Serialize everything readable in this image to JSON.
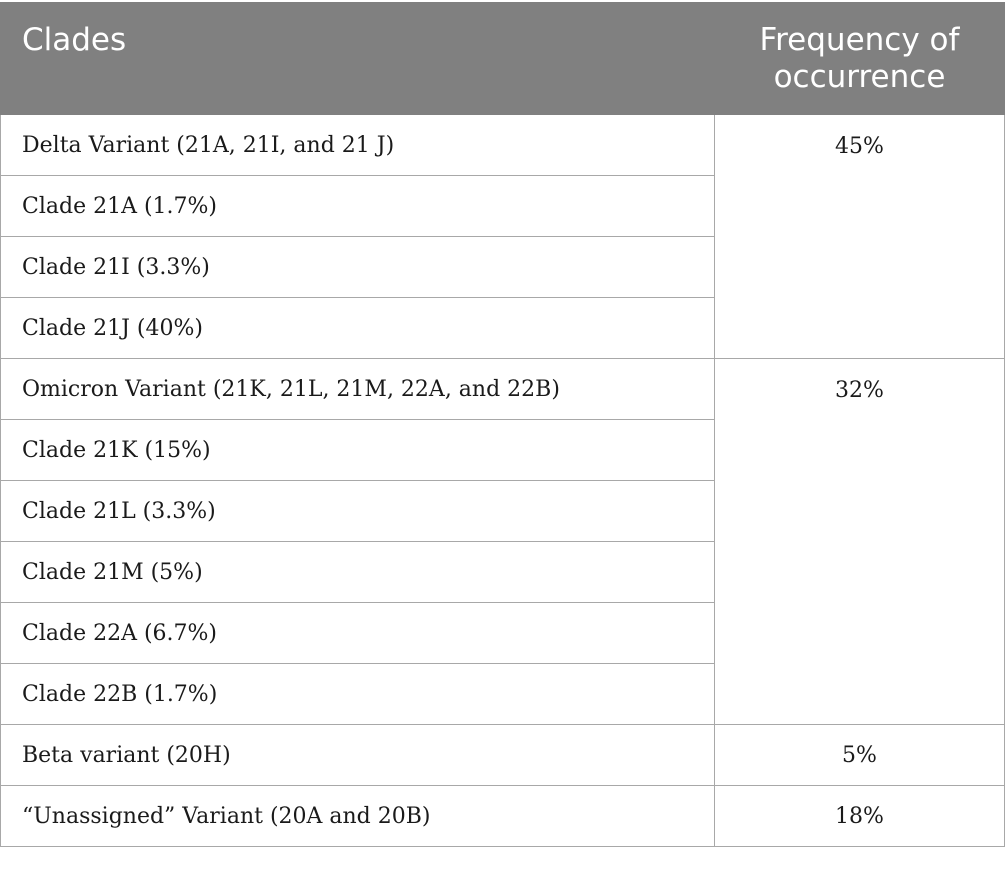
{
  "table": {
    "headers": [
      "Clades",
      "Frequency of occurrence"
    ],
    "groups": [
      {
        "frequency": "45%",
        "rows": [
          "Delta Variant (21A, 21I, and 21 J)",
          "Clade 21A (1.7%)",
          "Clade 21I (3.3%)",
          "Clade 21J (40%)"
        ]
      },
      {
        "frequency": "32%",
        "rows": [
          "Omicron Variant (21K, 21L, 21M, 22A, and 22B)",
          "Clade 21K (15%)",
          "Clade 21L (3.3%)",
          "Clade 21M (5%)",
          "Clade 22A (6.7%)",
          "Clade 22B (1.7%)"
        ]
      },
      {
        "frequency": "5%",
        "rows": [
          "Beta variant (20H)"
        ]
      },
      {
        "frequency": "18%",
        "rows": [
          "“Unassigned” Variant (20A and 20B)"
        ]
      }
    ]
  }
}
